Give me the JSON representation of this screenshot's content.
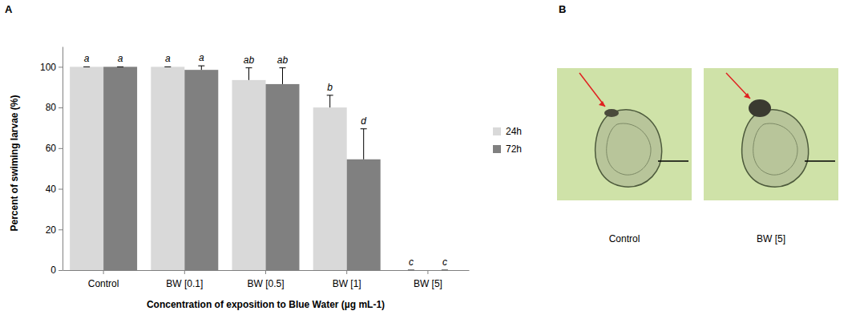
{
  "chart_data": {
    "type": "bar",
    "panel_label": "A",
    "x_label": "Concentration of exposition to Blue Water (µg mL-1)",
    "y_label": "Percent of swiming larvae (%)",
    "categories": [
      "Control",
      "BW [0.1]",
      "BW [0.5]",
      "BW [1]",
      "BW [5]"
    ],
    "series": [
      {
        "name": "24h",
        "color": "#d9d9d9",
        "values": [
          100,
          100,
          93.5,
          80,
          0
        ],
        "errors": [
          0,
          0,
          6,
          6,
          0
        ],
        "significance": [
          "a",
          "a",
          "ab",
          "b",
          "c"
        ]
      },
      {
        "name": "72h",
        "color": "#808080",
        "values": [
          100,
          98.5,
          91.5,
          54.5,
          0
        ],
        "errors": [
          0,
          2,
          8,
          15,
          0
        ],
        "significance": [
          "a",
          "a",
          "ab",
          "d",
          "c"
        ]
      }
    ],
    "ylim": [
      0,
      110
    ],
    "yticks": [
      0,
      20,
      40,
      60,
      80,
      100
    ],
    "grid": false,
    "legend": "right"
  },
  "images": {
    "panel_label": "B",
    "captions": [
      "Control",
      "BW [5]"
    ]
  }
}
